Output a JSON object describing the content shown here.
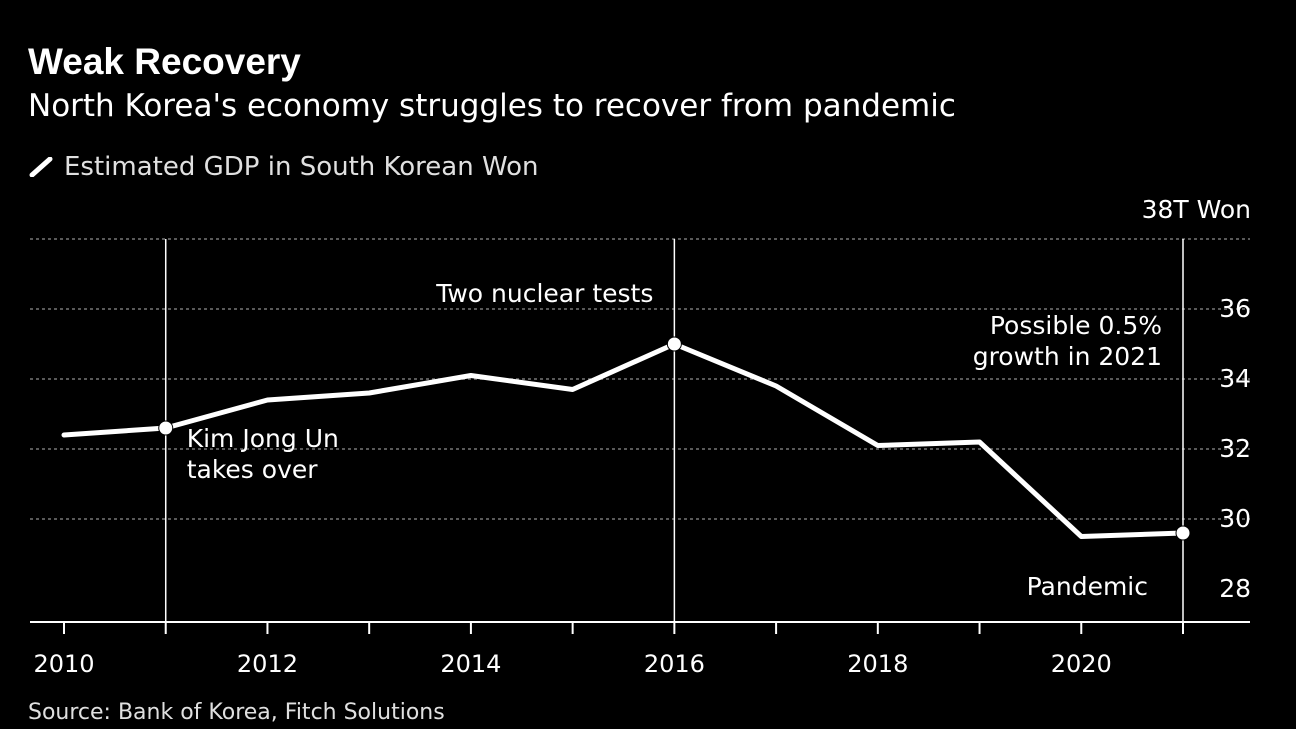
{
  "header": {
    "title": "Weak Recovery",
    "subtitle": "North Korea's economy struggles to recover from pandemic"
  },
  "legend": {
    "label": "Estimated GDP in South Korean Won",
    "icon": "white-line-swatch"
  },
  "source": "Source: Bank of Korea, Fitch Solutions",
  "colors": {
    "background": "#000000",
    "line": "#ffffff",
    "grid": "#777777",
    "text": "#ffffff"
  },
  "chart_data": {
    "type": "line",
    "title": "Weak Recovery",
    "subtitle": "North Korea's economy struggles to recover from pandemic",
    "xlabel": "",
    "ylabel": "Estimated GDP in South Korean Won",
    "unit_label": "38T Won",
    "x": [
      2010,
      2011,
      2012,
      2013,
      2014,
      2015,
      2016,
      2017,
      2018,
      2019,
      2020,
      2021
    ],
    "series": [
      {
        "name": "Estimated GDP in South Korean Won",
        "values": [
          32.4,
          32.6,
          33.4,
          33.6,
          34.1,
          33.7,
          35.0,
          33.8,
          32.1,
          32.2,
          29.5,
          29.6
        ]
      }
    ],
    "xlim": [
      2009.65,
      2021.65
    ],
    "ylim": [
      27,
      38
    ],
    "x_ticks": [
      2010,
      2012,
      2014,
      2016,
      2018,
      2020
    ],
    "x_tick_labels": [
      "2010",
      "2012",
      "2014",
      "2016",
      "2018",
      "2020"
    ],
    "y_ticks": [
      28,
      30,
      32,
      34,
      36
    ],
    "y_tick_labels": [
      "28",
      "30",
      "32",
      "34",
      "36"
    ],
    "gridlines": [
      30,
      32,
      34,
      36,
      38
    ],
    "grid": true,
    "axis_position": "right",
    "markers": [
      {
        "x": 2011,
        "label_lines": [
          "Kim Jong Un",
          "takes over"
        ],
        "placement": "below-right"
      },
      {
        "x": 2016,
        "label_lines": [
          "Two nuclear tests"
        ],
        "placement": "above-left"
      },
      {
        "x": 2021,
        "label_lines": [
          "Possible 0.5%",
          "growth in 2021"
        ],
        "placement": "above-left"
      }
    ],
    "annotations": [
      {
        "text": "Pandemic",
        "x": 2020.8,
        "y": 28.6
      }
    ]
  }
}
